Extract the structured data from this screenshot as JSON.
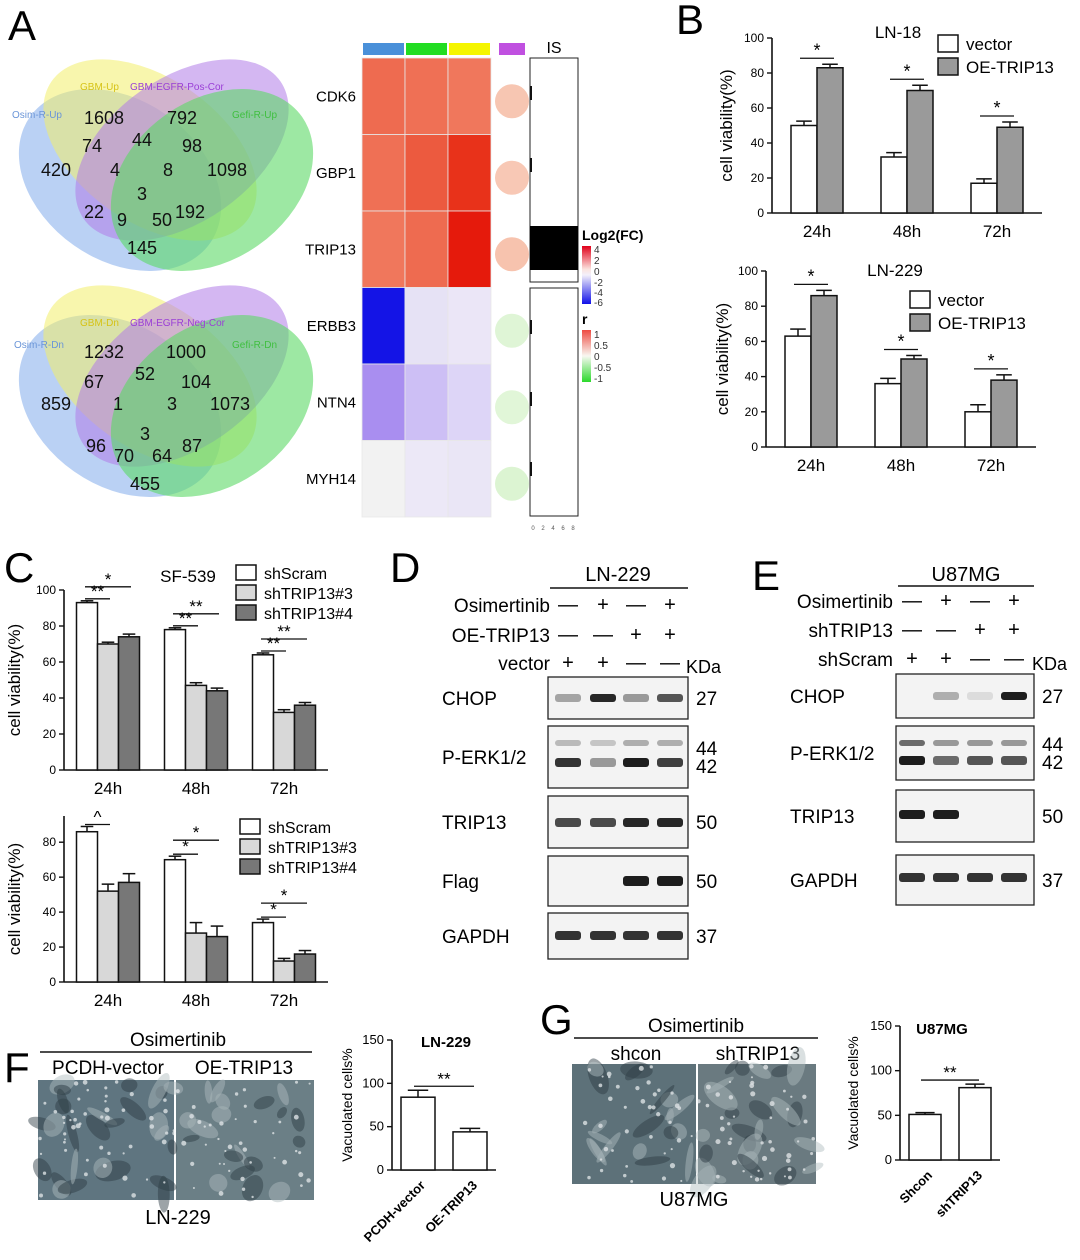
{
  "panels": {
    "A": {
      "letter": "A",
      "venn_up": {
        "labels": [
          "Osim-R-Up",
          "GBM-Up",
          "GBM-EGFR-Pos-Cor",
          "Gefi-R-Up"
        ],
        "regions": [
          "1608",
          "792",
          "420",
          "74",
          "44",
          "98",
          "1098",
          "4",
          "8",
          "3",
          "22",
          "9",
          "50",
          "192",
          "145"
        ]
      },
      "venn_dn": {
        "labels": [
          "Osim-R-Dn",
          "GBM-Dn",
          "GBM-EGFR-Neg-Cor",
          "Gefi-R-Dn"
        ],
        "regions": [
          "1232",
          "1000",
          "859",
          "67",
          "52",
          "104",
          "1073",
          "1",
          "3",
          "3",
          "96",
          "70",
          "64",
          "87",
          "455"
        ]
      },
      "heatmap": {
        "genes": [
          "CDK6",
          "GBP1",
          "TRIP13",
          "ERBB3",
          "NTN4",
          "MYH14"
        ],
        "header_colors": [
          "#4a90d9",
          "#22dd22",
          "#f5f500",
          "#c050e0"
        ],
        "cells": [
          [
            "#ee6b50",
            "#ef7055",
            "#f0775c"
          ],
          [
            "#ef7055",
            "#ec5a3f",
            "#e8321a"
          ],
          [
            "#f0775c",
            "#ee6b50",
            "#e51a0c"
          ],
          [
            "#1414e6",
            "#e6e2f5",
            "#ebe6f7"
          ],
          [
            "#a98ef0",
            "#cdbff5",
            "#ddd5f7"
          ],
          [
            "#f2f2f2",
            "#ece8f7",
            "#eae6f6"
          ]
        ],
        "circles": [
          "#f7c6b2",
          "#f8c8b5",
          "#f7c3ae",
          "#dff5d6",
          "#e1f6d8",
          "#dcf4d2"
        ],
        "is_label": "IS",
        "is_ticks": [
          "0",
          "2",
          "4",
          "6",
          "8"
        ],
        "legend_fc": {
          "title": "Log2(FC)",
          "ticks": [
            "4",
            "2",
            "0",
            "-2",
            "-4",
            "-6"
          ]
        },
        "legend_r": {
          "title": "r",
          "ticks": [
            "1",
            "0.5",
            "0",
            "-0.5",
            "-1"
          ]
        }
      }
    },
    "B": {
      "letter": "B",
      "legend": [
        "vector",
        "OE-TRIP13"
      ],
      "ylabel": "cell viability(%)"
    },
    "C": {
      "letter": "C",
      "legend": [
        "shScram",
        "shTRIP13#3",
        "shTRIP13#4"
      ],
      "ylabel": "cell viability(%)"
    },
    "D": {
      "letter": "D",
      "cell_line": "LN-229",
      "rows": [
        {
          "label": "Osimertinib",
          "signs": [
            "—",
            "+",
            "—",
            "+"
          ]
        },
        {
          "label": "OE-TRIP13",
          "signs": [
            "—",
            "—",
            "+",
            "+"
          ]
        },
        {
          "label": "vector",
          "signs": [
            "+",
            "+",
            "—",
            "—"
          ]
        }
      ],
      "kda": "KDa",
      "blots": [
        {
          "label": "CHOP",
          "kda": [
            "27"
          ]
        },
        {
          "label": "P-ERK1/2",
          "kda": [
            "44",
            "42"
          ]
        },
        {
          "label": "TRIP13",
          "kda": [
            "50"
          ]
        },
        {
          "label": "Flag",
          "kda": [
            "50"
          ]
        },
        {
          "label": "GAPDH",
          "kda": [
            "37"
          ]
        }
      ]
    },
    "E": {
      "letter": "E",
      "cell_line": "U87MG",
      "rows": [
        {
          "label": "Osimertinib",
          "signs": [
            "—",
            "+",
            "—",
            "+"
          ]
        },
        {
          "label": "shTRIP13",
          "signs": [
            "—",
            "—",
            "+",
            "+"
          ]
        },
        {
          "label": "shScram",
          "signs": [
            "+",
            "+",
            "—",
            "—"
          ]
        }
      ],
      "kda": "KDa",
      "blots": [
        {
          "label": "CHOP",
          "kda": [
            "27"
          ]
        },
        {
          "label": "P-ERK1/2",
          "kda": [
            "44",
            "42"
          ]
        },
        {
          "label": "TRIP13",
          "kda": [
            "50"
          ]
        },
        {
          "label": "GAPDH",
          "kda": [
            "37"
          ]
        }
      ]
    },
    "F": {
      "letter": "F",
      "treatment": "Osimertinib",
      "image_labels": [
        "PCDH-vector",
        "OE-TRIP13"
      ],
      "cell_line": "LN-229",
      "ylabel": "Vacuolated cells%"
    },
    "G": {
      "letter": "G",
      "treatment": "Osimertinib",
      "image_labels": [
        "shcon",
        "shTRIP13"
      ],
      "cell_line": "U87MG",
      "ylabel": "Vacuolated cells%"
    }
  },
  "chart_data": [
    {
      "type": "bar",
      "id": "B_top",
      "title": "LN-18",
      "categories": [
        "24h",
        "48h",
        "72h"
      ],
      "series": [
        {
          "name": "vector",
          "values": [
            50,
            32,
            17
          ],
          "errors": [
            2.5,
            2.5,
            2.5
          ]
        },
        {
          "name": "OE-TRIP13",
          "values": [
            83,
            70,
            49
          ],
          "errors": [
            2,
            3,
            3
          ]
        }
      ],
      "significance": [
        [
          "*",
          0
        ],
        [
          "*",
          1
        ],
        [
          "*",
          2
        ]
      ],
      "ylabel": "cell viability(%)",
      "ylim": [
        0,
        100
      ],
      "yticks": [
        0,
        20,
        40,
        60,
        80,
        100
      ]
    },
    {
      "type": "bar",
      "id": "B_bottom",
      "title": "LN-229",
      "categories": [
        "24h",
        "48h",
        "72h"
      ],
      "series": [
        {
          "name": "vector",
          "values": [
            63,
            36,
            20
          ],
          "errors": [
            4,
            3,
            4
          ]
        },
        {
          "name": "OE-TRIP13",
          "values": [
            86,
            50,
            38
          ],
          "errors": [
            3,
            2,
            3
          ]
        }
      ],
      "significance": [
        [
          "*",
          0
        ],
        [
          "*",
          1
        ],
        [
          "*",
          2
        ]
      ],
      "ylabel": "cell viability(%)",
      "ylim": [
        0,
        100
      ],
      "yticks": [
        0,
        20,
        40,
        60,
        80,
        100
      ]
    },
    {
      "type": "bar",
      "id": "C_top",
      "title": "SF-539",
      "categories": [
        "24h",
        "48h",
        "72h"
      ],
      "series": [
        {
          "name": "shScram",
          "values": [
            93,
            78,
            64
          ],
          "errors": [
            1,
            1,
            1
          ]
        },
        {
          "name": "shTRIP13#3",
          "values": [
            70,
            47,
            32
          ],
          "errors": [
            1,
            1.5,
            1.5
          ]
        },
        {
          "name": "shTRIP13#4",
          "values": [
            74,
            44,
            36
          ],
          "errors": [
            1.5,
            1.5,
            1.5
          ]
        }
      ],
      "significance": [
        [
          "*",
          "**",
          0
        ],
        [
          "**",
          "**",
          1
        ],
        [
          "**",
          "**",
          2
        ]
      ],
      "ylabel": "cell viability(%)",
      "ylim": [
        0,
        100
      ],
      "yticks": [
        0,
        20,
        40,
        60,
        80,
        100
      ]
    },
    {
      "type": "bar",
      "id": "C_bottom",
      "title": "",
      "categories": [
        "24h",
        "48h",
        "72h"
      ],
      "series": [
        {
          "name": "shScram",
          "values": [
            86,
            70,
            34
          ],
          "errors": [
            3,
            2,
            2
          ]
        },
        {
          "name": "shTRIP13#3",
          "values": [
            52,
            28,
            12
          ],
          "errors": [
            4,
            6,
            1.5
          ]
        },
        {
          "name": "shTRIP13#4",
          "values": [
            57,
            26,
            16
          ],
          "errors": [
            5,
            6,
            2
          ]
        }
      ],
      "significance": [
        [
          "^",
          0
        ],
        [
          "*",
          "*",
          1
        ],
        [
          "*",
          "*",
          2
        ]
      ],
      "ylabel": "cell viability(%)",
      "ylim": [
        0,
        95
      ],
      "yticks": [
        0,
        20,
        40,
        60,
        80
      ]
    },
    {
      "type": "bar",
      "id": "F_bar",
      "title": "LN-229",
      "categories": [
        "PCDH-vector",
        "OE-TRIP13"
      ],
      "values": [
        84,
        44
      ],
      "errors": [
        8,
        4
      ],
      "significance": "**",
      "ylabel": "Vacuolated cells%",
      "ylim": [
        0,
        150
      ],
      "yticks": [
        0,
        50,
        100,
        150
      ]
    },
    {
      "type": "bar",
      "id": "G_bar",
      "title": "U87MG",
      "categories": [
        "Shcon",
        "shTRIP13"
      ],
      "values": [
        51,
        81
      ],
      "errors": [
        2,
        4
      ],
      "significance": "**",
      "ylabel": "Vacuolated cells%",
      "ylim": [
        0,
        150
      ],
      "yticks": [
        0,
        50,
        100,
        150
      ]
    }
  ]
}
